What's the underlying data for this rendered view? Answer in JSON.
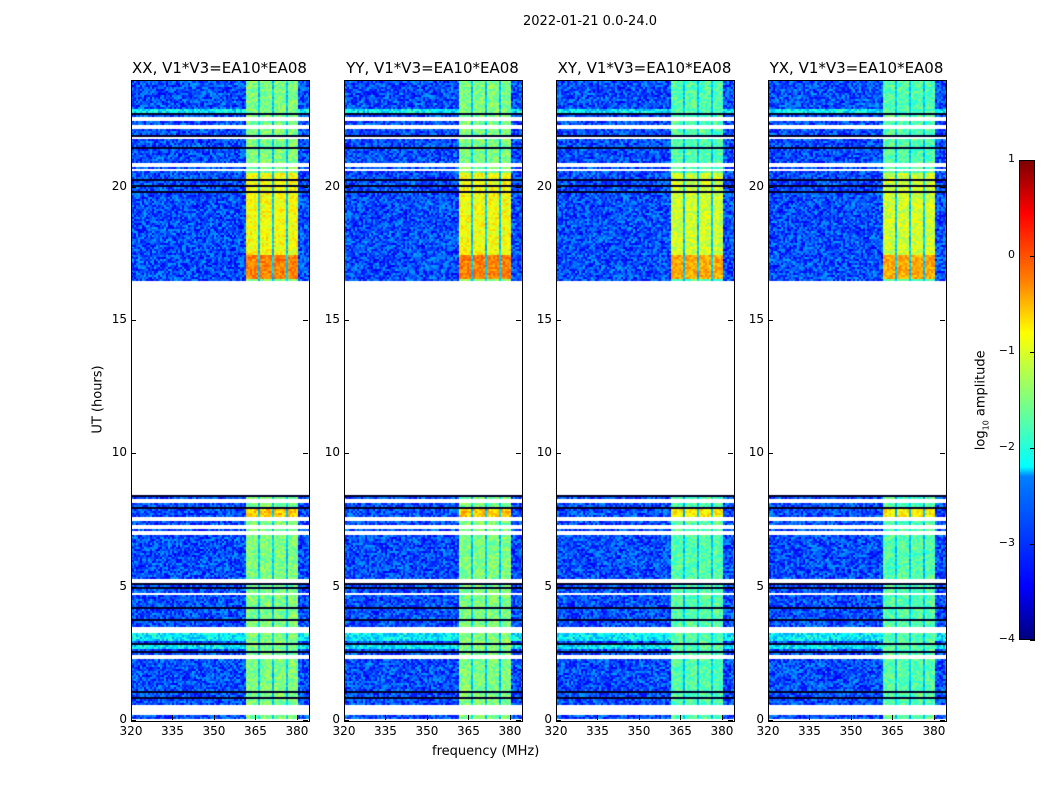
{
  "chart_data": {
    "type": "heatmap",
    "title": "2022-01-21 0.0-24.0",
    "xlabel": "frequency (MHz)",
    "ylabel": "UT (hours)",
    "xlim": [
      320,
      384
    ],
    "ylim": [
      0,
      24
    ],
    "xticks": [
      320,
      335,
      350,
      365,
      380
    ],
    "yticks": [
      0,
      5,
      10,
      15,
      20
    ],
    "panels": [
      {
        "title": "XX, V1*V3=EA10*EA08"
      },
      {
        "title": "YY, V1*V3=EA10*EA08"
      },
      {
        "title": "XY, V1*V3=EA10*EA08"
      },
      {
        "title": "YX, V1*V3=EA10*EA08"
      }
    ],
    "no_data_hours": [
      8.5,
      16.55
    ],
    "signal_band_mhz": [
      360.5,
      380
    ],
    "background_log_amp": -3.0,
    "band_log_amp": -1.5,
    "band_log_amp_peak_16_6_to_17_5": 0.0,
    "colorbar": {
      "label": "log10 amplitude",
      "label_base": "log",
      "label_sub": "10",
      "label_rest": " amplitude",
      "range": [
        -4,
        1
      ],
      "ticks": [
        "1",
        "0",
        "−1",
        "−2",
        "−3",
        "−4"
      ],
      "colormap": "jet"
    }
  }
}
